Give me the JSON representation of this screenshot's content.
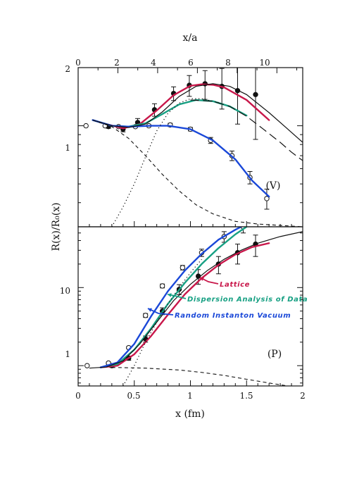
{
  "chart_data": {
    "type": "scatter",
    "x_range": [
      0,
      2
    ],
    "x_ticks": [
      "0",
      "0.5",
      "1",
      "1.5",
      "2"
    ],
    "xlabel": "x (fm)",
    "top_axis": {
      "label": "x/a",
      "range": [
        0,
        11.3
      ],
      "ticks": [
        "0",
        "2",
        "4",
        "6",
        "8",
        "10"
      ]
    },
    "ylabel": "R(x)/R₀(x)",
    "y_scale": "log",
    "panels": [
      {
        "tag": "(V)",
        "ylim": [
          0.3,
          2
        ],
        "y_ticks": [
          "1",
          "2"
        ],
        "series": [
          {
            "style": "filled-markers",
            "x": [
              0.27,
              0.4,
              0.53,
              0.68,
              0.85,
              0.99,
              1.13,
              1.28,
              1.42,
              1.58
            ],
            "y": [
              0.99,
              0.96,
              1.04,
              1.21,
              1.47,
              1.62,
              1.65,
              1.6,
              1.52,
              1.45
            ],
            "err": [
              0.02,
              0.03,
              0.05,
              0.09,
              0.12,
              0.2,
              0.28,
              0.38,
              0.5,
              0.6
            ]
          },
          {
            "style": "open-markers",
            "x": [
              0.07,
              0.24,
              0.36,
              0.51,
              0.63,
              0.82,
              1.0,
              1.18,
              1.37,
              1.53,
              1.68
            ],
            "y": [
              1.0,
              1.0,
              0.99,
              0.99,
              1.0,
              1.01,
              0.96,
              0.84,
              0.7,
              0.54,
              0.42
            ],
            "err": [
              0,
              0,
              0.01,
              0.01,
              0.01,
              0.02,
              0.02,
              0.03,
              0.04,
              0.04,
              0.05
            ]
          },
          {
            "style": "lattice-fit",
            "color": "#c8174a",
            "x": [
              0.13,
              0.25,
              0.4,
              0.55,
              0.7,
              0.85,
              1.0,
              1.1,
              1.2,
              1.3,
              1.5,
              1.7
            ],
            "y": [
              1.07,
              1.02,
              0.97,
              1.02,
              1.2,
              1.44,
              1.61,
              1.64,
              1.63,
              1.58,
              1.36,
              1.07
            ]
          },
          {
            "style": "dispersion-fit",
            "color": "#17a083",
            "x": [
              0.13,
              0.3,
              0.45,
              0.6,
              0.75,
              0.9,
              1.05,
              1.2,
              1.35,
              1.5
            ],
            "y": [
              1.07,
              1.0,
              0.99,
              1.03,
              1.15,
              1.29,
              1.36,
              1.34,
              1.26,
              1.13
            ]
          },
          {
            "style": "instanton-fit",
            "color": "#1a48d8",
            "x": [
              0.13,
              0.3,
              0.45,
              0.65,
              0.8,
              1.0,
              1.2,
              1.4,
              1.55,
              1.7
            ],
            "y": [
              1.07,
              1.0,
              0.99,
              1.0,
              1.0,
              0.96,
              0.84,
              0.67,
              0.52,
              0.43
            ]
          },
          {
            "style": "solid-line",
            "x": [
              0.13,
              0.3,
              0.45,
              0.6,
              0.75,
              0.9,
              1.05,
              1.2,
              1.35,
              1.5,
              1.7,
              1.85,
              2.0
            ],
            "y": [
              1.07,
              1.0,
              0.98,
              1.02,
              1.18,
              1.42,
              1.6,
              1.65,
              1.6,
              1.45,
              1.17,
              0.98,
              0.82
            ]
          },
          {
            "style": "long-dash-line",
            "x": [
              1.0,
              1.2,
              1.35,
              1.5,
              1.65,
              1.8,
              1.9,
              2.0
            ],
            "y": [
              1.36,
              1.34,
              1.26,
              1.12,
              0.96,
              0.82,
              0.73,
              0.66
            ]
          },
          {
            "style": "short-dash-line",
            "x": [
              0.13,
              0.3,
              0.45,
              0.6,
              0.75,
              0.9,
              1.05,
              1.2,
              1.4,
              1.6,
              1.8,
              2.0
            ],
            "y": [
              1.07,
              0.99,
              0.86,
              0.7,
              0.56,
              0.46,
              0.39,
              0.35,
              0.32,
              0.31,
              0.305,
              0.3
            ]
          },
          {
            "style": "dotted-line",
            "x": [
              0.3,
              0.4,
              0.5,
              0.6,
              0.7,
              0.8,
              0.9,
              1.0,
              1.1,
              1.25
            ],
            "y": [
              0.3,
              0.38,
              0.5,
              0.69,
              0.94,
              1.16,
              1.31,
              1.38,
              1.38,
              1.32
            ]
          }
        ]
      },
      {
        "tag": "(P)",
        "ylim": [
          0.55,
          60
        ],
        "y_ticks": [
          "1",
          "10"
        ],
        "series": [
          {
            "style": "filled-markers",
            "x": [
              0.3,
              0.45,
              0.6,
              0.75,
              0.9,
              1.07,
              1.25,
              1.42,
              1.58
            ],
            "y": [
              1.0,
              1.25,
              2.2,
              5.0,
              9.5,
              14.0,
              20.0,
              28.0,
              36.0
            ],
            "err": [
              0.05,
              0.08,
              0.2,
              0.5,
              1.4,
              3.0,
              5.0,
              8.0,
              11.0
            ]
          },
          {
            "style": "open-markers",
            "x": [
              0.08,
              0.27,
              0.45,
              0.6,
              0.75,
              0.93,
              1.1,
              1.3,
              1.47
            ],
            "y": [
              1.0,
              1.08,
              1.7,
              4.4,
              10.5,
              18.0,
              28.0,
              45.0,
              60.0
            ],
            "err": [
              0,
              0.03,
              0.05,
              0.25,
              0.6,
              1.2,
              3.0,
              7.0,
              10.0
            ]
          },
          {
            "style": "lattice-fit",
            "color": "#c8174a",
            "x": [
              0.2,
              0.35,
              0.5,
              0.65,
              0.8,
              0.95,
              1.1,
              1.25,
              1.4,
              1.55,
              1.7
            ],
            "y": [
              0.95,
              1.0,
              1.4,
              2.4,
              4.5,
              8.2,
              13.2,
              19.5,
              26.5,
              33.0,
              37.0
            ]
          },
          {
            "style": "dispersion-fit",
            "color": "#17a083",
            "x": [
              0.2,
              0.35,
              0.5,
              0.65,
              0.8,
              0.95,
              1.1,
              1.25,
              1.4,
              1.5
            ],
            "y": [
              0.95,
              1.05,
              1.6,
              3.0,
              6.2,
              11.5,
              20.0,
              32.0,
              48.0,
              60.0
            ]
          },
          {
            "style": "instanton-fit",
            "color": "#1a48d8",
            "x": [
              0.2,
              0.35,
              0.5,
              0.65,
              0.8,
              0.95,
              1.1,
              1.25,
              1.4,
              1.47
            ],
            "y": [
              0.95,
              1.1,
              1.9,
              4.3,
              9.0,
              16.5,
              27.0,
              41.0,
              55.0,
              62.0
            ]
          },
          {
            "style": "solid-line",
            "x": [
              0.1,
              0.25,
              0.4,
              0.55,
              0.7,
              0.85,
              1.0,
              1.15,
              1.3,
              1.45,
              1.6,
              1.8,
              2.0
            ],
            "y": [
              0.93,
              0.96,
              1.15,
              1.9,
              3.6,
              6.8,
              11.0,
              16.5,
              23.0,
              30.0,
              37.0,
              45.0,
              52.0
            ]
          },
          {
            "style": "short-dash-line",
            "x": [
              0.3,
              0.6,
              0.9,
              1.1,
              1.3,
              1.5,
              1.7,
              1.9
            ],
            "y": [
              0.95,
              0.93,
              0.88,
              0.82,
              0.75,
              0.67,
              0.6,
              0.54
            ]
          },
          {
            "style": "dotted-line",
            "x": [
              0.4,
              0.5,
              0.6,
              0.7,
              0.8,
              0.9,
              1.0,
              1.1
            ],
            "y": [
              0.55,
              1.0,
              2.0,
              3.6,
              6.2,
              10.0,
              15.5,
              23.0
            ]
          }
        ]
      }
    ],
    "annotations": [
      {
        "text": "Lattice",
        "color": "#c8174a"
      },
      {
        "text": "Dispersion Analysis of Data",
        "color": "#17a083"
      },
      {
        "text": "Random Instanton Vacuum",
        "color": "#1a48d8"
      }
    ]
  }
}
